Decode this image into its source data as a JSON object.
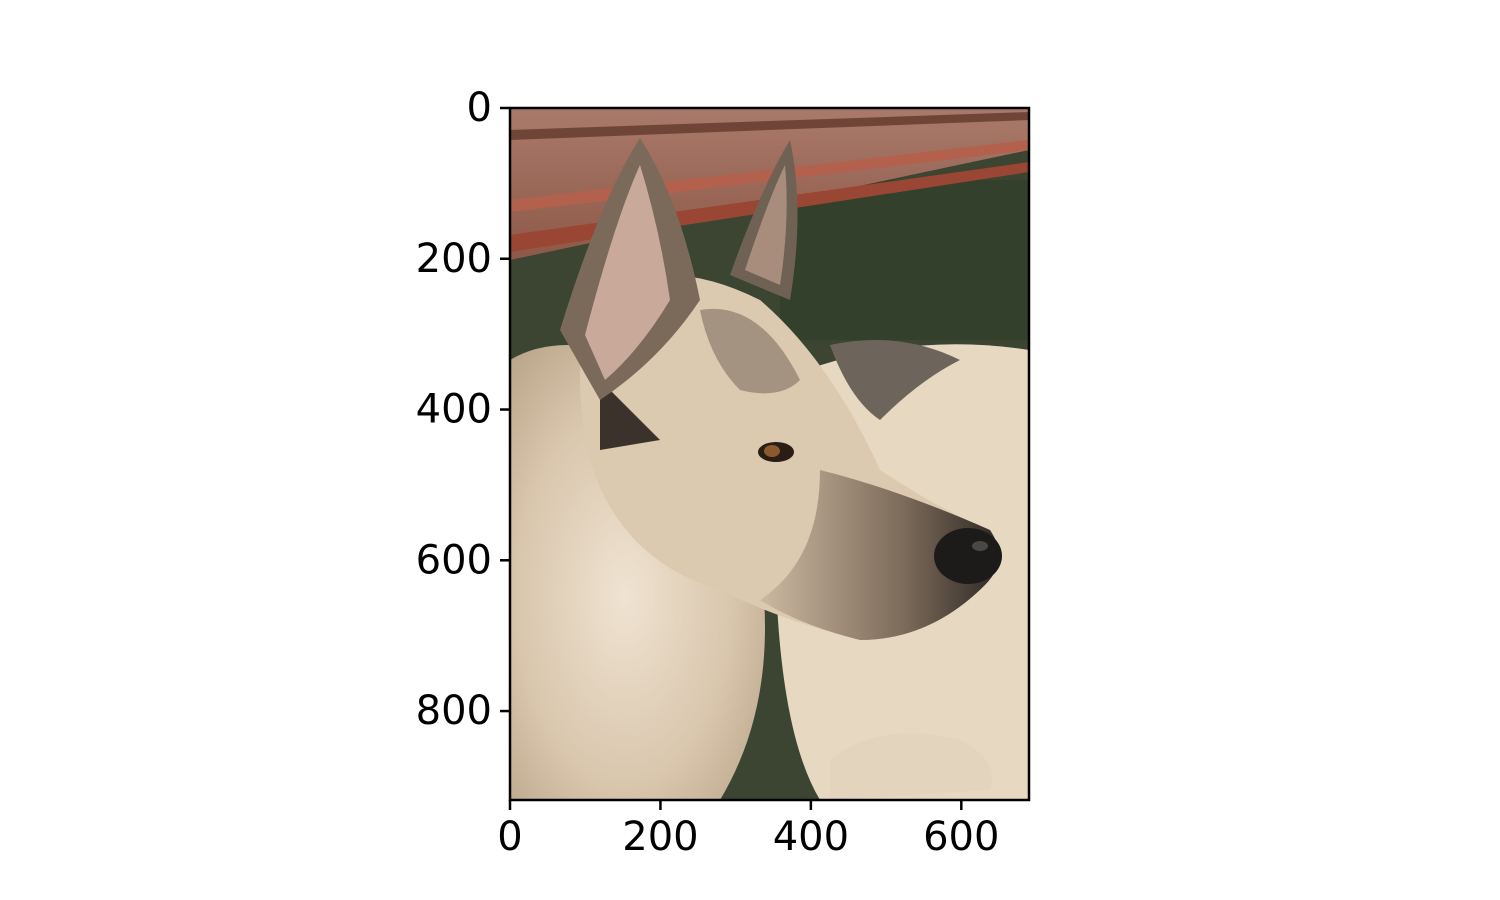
{
  "figure": {
    "image_description_hidden": "",
    "x_axis": {
      "range": [
        0,
        690
      ],
      "ticks": [
        0,
        200,
        400,
        600
      ],
      "tick_labels": [
        "0",
        "200",
        "400",
        "600"
      ]
    },
    "y_axis": {
      "range": [
        0,
        918
      ],
      "inverted": true,
      "ticks": [
        0,
        200,
        400,
        600,
        800
      ],
      "tick_labels": [
        "0",
        "200",
        "400",
        "600",
        "800"
      ]
    }
  }
}
